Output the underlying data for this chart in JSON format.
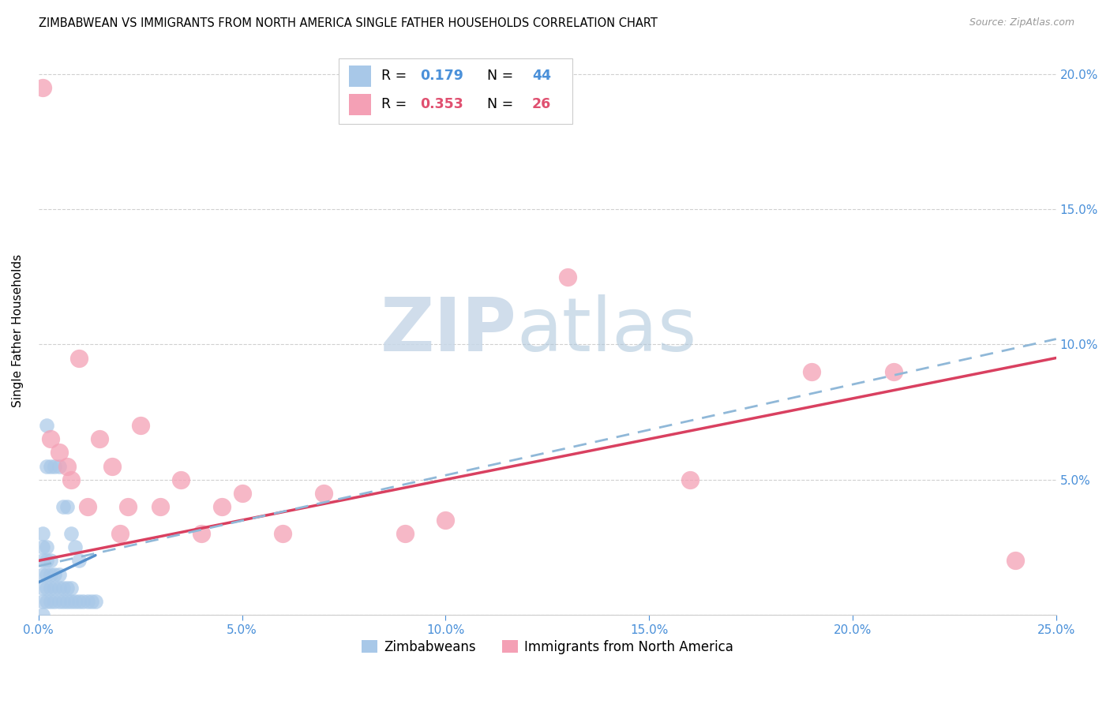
{
  "title": "ZIMBABWEAN VS IMMIGRANTS FROM NORTH AMERICA SINGLE FATHER HOUSEHOLDS CORRELATION CHART",
  "source": "Source: ZipAtlas.com",
  "ylabel": "Single Father Households",
  "xlim": [
    0.0,
    0.25
  ],
  "ylim": [
    0.0,
    0.21
  ],
  "xticks": [
    0.0,
    0.05,
    0.1,
    0.15,
    0.2,
    0.25
  ],
  "yticks": [
    0.0,
    0.05,
    0.1,
    0.15,
    0.2
  ],
  "xticklabels": [
    "0.0%",
    "5.0%",
    "10.0%",
    "15.0%",
    "20.0%",
    "25.0%"
  ],
  "yticklabels_right": [
    "",
    "5.0%",
    "10.0%",
    "15.0%",
    "20.0%"
  ],
  "blue_scatter_color": "#a8c8e8",
  "pink_scatter_color": "#f4a0b5",
  "blue_line_color": "#5590cc",
  "pink_line_color": "#d94060",
  "dashed_line_color": "#90b8d8",
  "tick_label_color": "#4a90d9",
  "legend_label1": "Zimbabweans",
  "legend_label2": "Immigrants from North America",
  "R1": "0.179",
  "N1": "44",
  "R2": "0.353",
  "N2": "26",
  "blue_scatter_x": [
    0.001,
    0.001,
    0.001,
    0.001,
    0.001,
    0.001,
    0.001,
    0.002,
    0.002,
    0.002,
    0.002,
    0.002,
    0.003,
    0.003,
    0.003,
    0.003,
    0.004,
    0.004,
    0.004,
    0.005,
    0.005,
    0.005,
    0.006,
    0.006,
    0.007,
    0.007,
    0.008,
    0.008,
    0.009,
    0.01,
    0.011,
    0.012,
    0.013,
    0.014,
    0.002,
    0.003,
    0.004,
    0.005,
    0.006,
    0.007,
    0.008,
    0.009,
    0.01,
    0.002
  ],
  "blue_scatter_y": [
    0.005,
    0.01,
    0.015,
    0.02,
    0.025,
    0.03,
    0.0,
    0.005,
    0.01,
    0.015,
    0.02,
    0.025,
    0.005,
    0.01,
    0.015,
    0.02,
    0.005,
    0.01,
    0.015,
    0.005,
    0.01,
    0.015,
    0.005,
    0.01,
    0.005,
    0.01,
    0.005,
    0.01,
    0.005,
    0.005,
    0.005,
    0.005,
    0.005,
    0.005,
    0.055,
    0.055,
    0.055,
    0.055,
    0.04,
    0.04,
    0.03,
    0.025,
    0.02,
    0.07
  ],
  "pink_scatter_x": [
    0.001,
    0.003,
    0.005,
    0.007,
    0.008,
    0.01,
    0.012,
    0.015,
    0.018,
    0.02,
    0.022,
    0.025,
    0.03,
    0.035,
    0.04,
    0.045,
    0.05,
    0.06,
    0.07,
    0.09,
    0.1,
    0.13,
    0.16,
    0.19,
    0.21,
    0.24
  ],
  "pink_scatter_y": [
    0.195,
    0.065,
    0.06,
    0.055,
    0.05,
    0.095,
    0.04,
    0.065,
    0.055,
    0.03,
    0.04,
    0.07,
    0.04,
    0.05,
    0.03,
    0.04,
    0.045,
    0.03,
    0.045,
    0.03,
    0.035,
    0.125,
    0.05,
    0.09,
    0.09,
    0.02
  ],
  "blue_line_x": [
    0.0,
    0.014
  ],
  "blue_line_y": [
    0.012,
    0.022
  ],
  "pink_line_x": [
    0.0,
    0.25
  ],
  "pink_line_y": [
    0.02,
    0.095
  ],
  "dashed_line_x": [
    0.0,
    0.25
  ],
  "dashed_line_y": [
    0.018,
    0.102
  ]
}
